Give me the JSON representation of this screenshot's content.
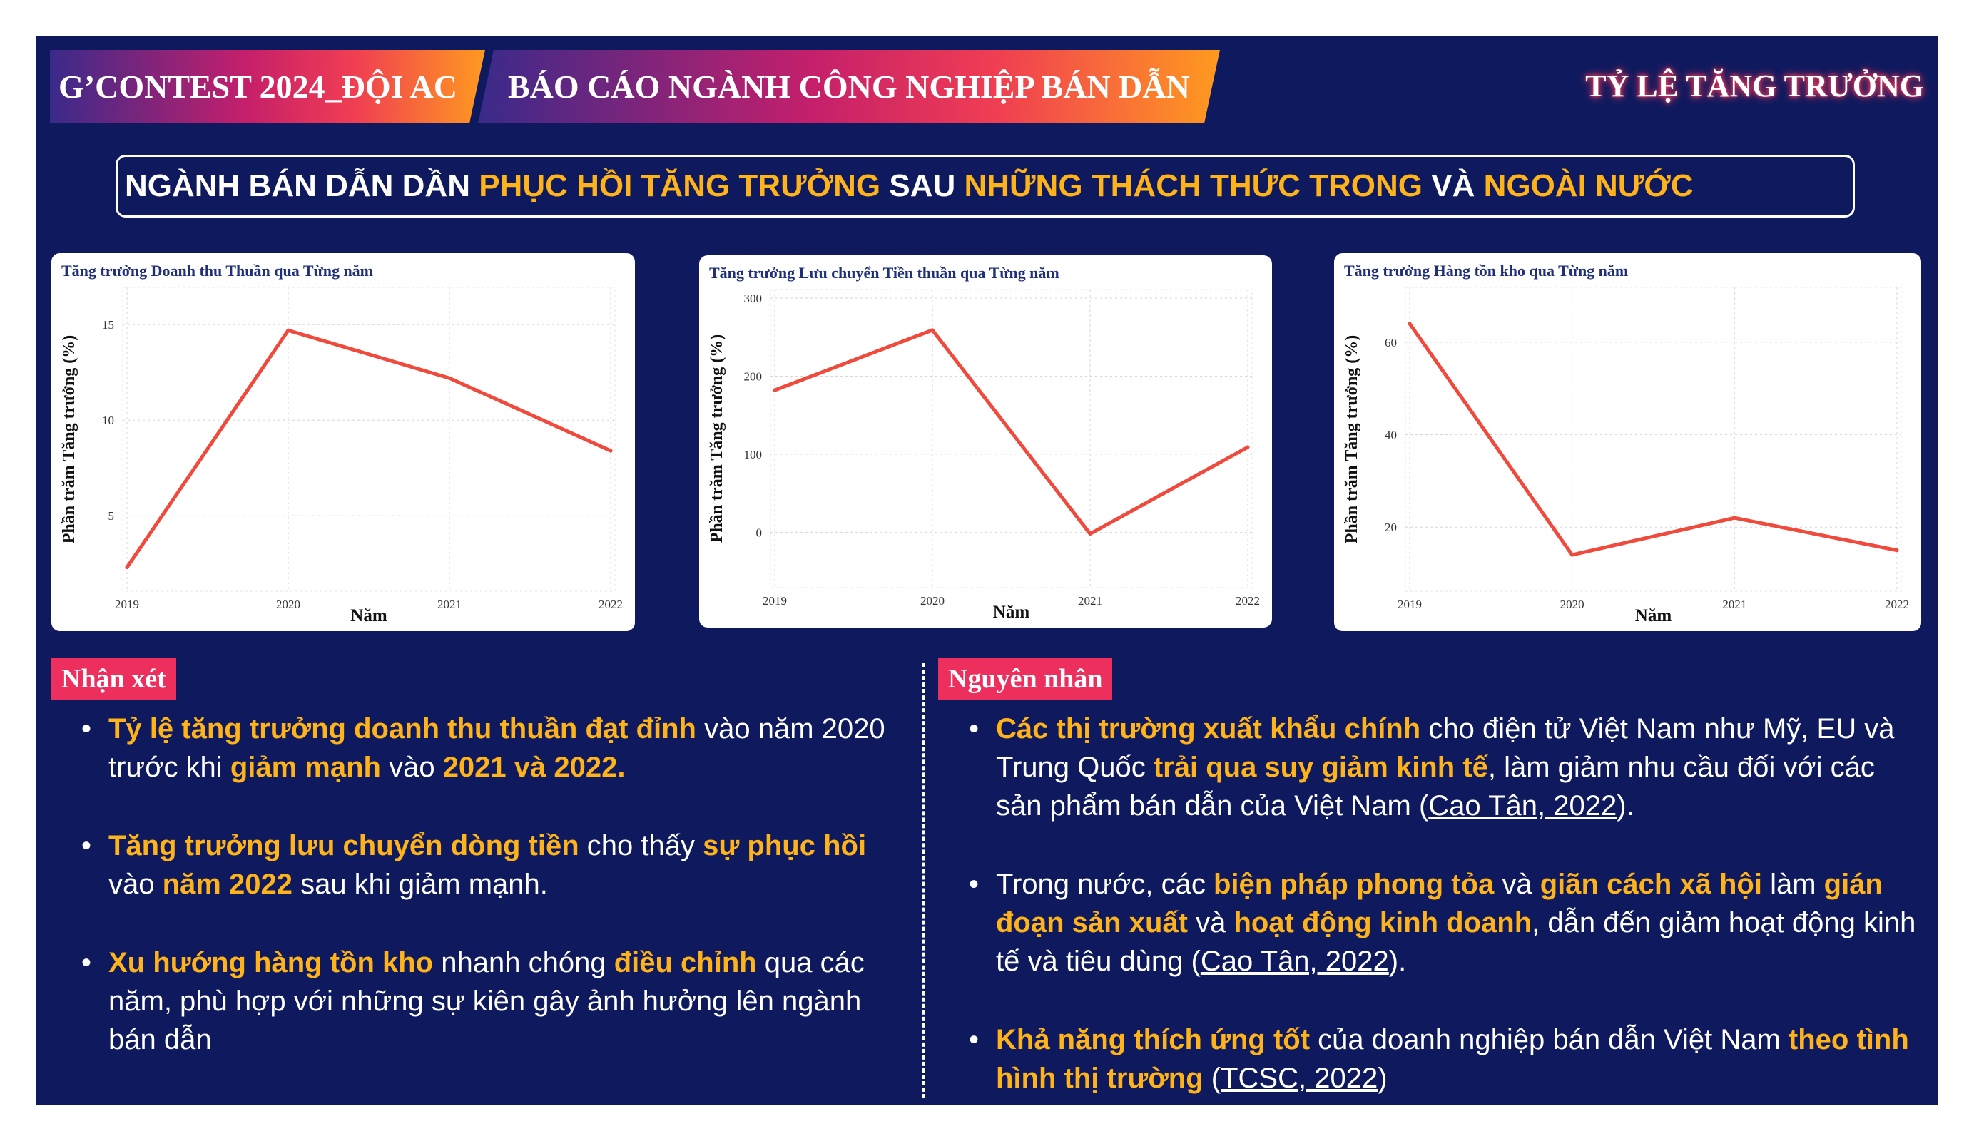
{
  "header": {
    "tag_left": "G’CONTEST 2024_ĐỘI AC",
    "tag_center": "BÁO CÁO NGÀNH CÔNG NGHIỆP BÁN DẪN",
    "top_right": "TỶ LỆ TĂNG TRƯỞNG"
  },
  "headline": {
    "p1": "NGÀNH BÁN DẪN DẦN ",
    "h1": "PHỤC HỒI TĂNG TRƯỞNG",
    "p2": " SAU ",
    "h2": "NHỮNG THÁCH THỨC TRONG",
    "p3": " VÀ ",
    "h3": "NGOÀI NƯỚC"
  },
  "colors": {
    "background": "#0f1a5e",
    "highlight": "#ffb31a",
    "label_bg": "#ed2f5e",
    "line": "#f04a3c"
  },
  "chart_data": [
    {
      "type": "line",
      "title": "Tăng trưởng Doanh thu Thuần qua Từng năm",
      "xlabel": "Năm",
      "ylabel": "Phần trăm Tăng trưởng (%)",
      "x": [
        "2019",
        "2020",
        "2021",
        "2022"
      ],
      "values": [
        2.3,
        14.7,
        12.2,
        8.4
      ],
      "yticks": [
        5,
        10,
        15
      ],
      "ylim": [
        1.5,
        16.5
      ],
      "grid": true
    },
    {
      "type": "line",
      "title": "Tăng trưởng Lưu chuyển Tiền thuần qua Từng năm",
      "xlabel": "Năm",
      "ylabel": "Phần trăm Tăng trưởng (%)",
      "x": [
        "2019",
        "2020",
        "2021",
        "2022"
      ],
      "values": [
        182,
        259,
        -2,
        109
      ],
      "yticks": [
        0,
        100,
        200,
        300
      ],
      "ylim": [
        -60,
        300
      ],
      "grid": true
    },
    {
      "type": "line",
      "title": "Tăng trưởng Hàng tồn kho qua Từng năm",
      "xlabel": "Năm",
      "ylabel": "Phần trăm Tăng trưởng (%)",
      "x": [
        "2019",
        "2020",
        "2021",
        "2022"
      ],
      "values": [
        64,
        14,
        22,
        15
      ],
      "yticks": [
        20,
        40,
        60
      ],
      "ylim": [
        8,
        70
      ],
      "grid": true
    }
  ],
  "left_section": {
    "label": "Nhận xét",
    "b1": {
      "s1": "Tỷ lệ tăng trưởng doanh thu thuần đạt đỉnh",
      "s2": " vào năm 2020 trước khi ",
      "s3": "giảm mạnh",
      "s4": " vào ",
      "s5": "2021 và 2022."
    },
    "b2": {
      "s1": "Tăng trưởng lưu chuyển dòng tiền",
      "s2": " cho thấy ",
      "s3": "sự phục hồi",
      "s4": " vào ",
      "s5": "năm 2022",
      "s6": " sau khi giảm mạnh."
    },
    "b3": {
      "s1": "Xu hướng hàng tồn kho",
      "s2": " nhanh chóng ",
      "s3": "điều chỉnh",
      "s4": " qua các năm, phù hợp với những sự kiên gây ảnh hưởng lên ngành bán dẫn"
    }
  },
  "right_section": {
    "label": "Nguyên nhân",
    "b1": {
      "s1": "Các thị trường xuất khẩu chính",
      "s2": " cho điện tử Việt Nam như Mỹ, EU và Trung Quốc ",
      "s3": "trải qua suy giảm kinh tế",
      "s4": ", làm giảm nhu cầu đối với các sản phẩm bán dẫn của Việt Nam (",
      "s5": "Cao Tân, 2022",
      "s6": ")."
    },
    "b2": {
      "s1": "Trong nước, các ",
      "s2": "biện pháp phong tỏa",
      "s3": " và ",
      "s4": "giãn cách xã hội",
      "s5": " làm ",
      "s6": "gián đoạn sản xuất",
      "s7": " và ",
      "s8": "hoạt động kinh doanh",
      "s9": ", dẫn đến giảm hoạt động kinh tế và tiêu dùng (",
      "s10": "Cao Tân, 2022",
      "s11": ")."
    },
    "b3": {
      "s1": "Khả năng thích ứng tốt",
      "s2": " của doanh nghiệp bán dẫn Việt Nam ",
      "s3": "theo tình hình thị trường",
      "s4": " (",
      "s5": "TCSC, 2022",
      "s6": ")"
    }
  }
}
